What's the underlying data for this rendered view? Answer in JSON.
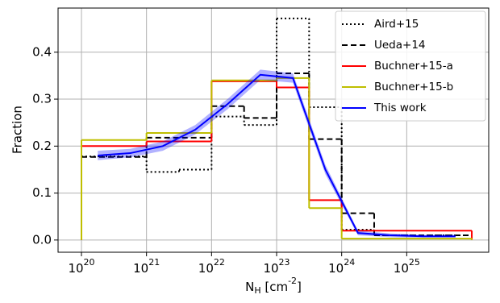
{
  "chart_data": {
    "type": "step",
    "x_label": "N_H [cm^-2]",
    "y_label": "Fraction",
    "xscale": "log",
    "grid": true,
    "legend": "upper right",
    "xlim": [
      4.37e+19,
      1.82e+26
    ],
    "ylim": [
      -0.026,
      0.494
    ],
    "xticks": [
      {
        "value": 1e+20,
        "label": "10^20"
      },
      {
        "value": 1e+21,
        "label": "10^21"
      },
      {
        "value": 1e+22,
        "label": "10^22"
      },
      {
        "value": 1e+23,
        "label": "10^23"
      },
      {
        "value": 1e+24,
        "label": "10^24"
      },
      {
        "value": 1e+25,
        "label": "10^25"
      }
    ],
    "yticks": [
      {
        "value": 0,
        "label": "0.0"
      },
      0.1,
      0.2,
      0.3,
      0.4
    ],
    "series": [
      {
        "name": "Aird+15",
        "color": "#000000",
        "dash": "dotted",
        "bins": [
          1e+20,
          1e+21,
          3.16e+21,
          1e+22,
          3.16e+22,
          1e+23,
          3.16e+23,
          1e+24,
          3.16e+24,
          1e+26
        ],
        "values": [
          0.178,
          0.145,
          0.15,
          0.263,
          0.245,
          0.472,
          0.283,
          0.022,
          0.01
        ]
      },
      {
        "name": "Ueda+14",
        "color": "#000000",
        "dash": "dashed",
        "bins": [
          1e+20,
          1e+21,
          1e+22,
          3.16e+22,
          1e+23,
          3.16e+23,
          1e+24,
          3.16e+24,
          1e+26
        ],
        "values": [
          0.177,
          0.218,
          0.285,
          0.26,
          0.355,
          0.215,
          0.057,
          0.01
        ]
      },
      {
        "name": "Buchner+15-a",
        "color": "#ff0000",
        "dash": "solid",
        "drop_to_zero": true,
        "bins": [
          1e+20,
          1e+21,
          1e+22,
          1e+23,
          3.16e+23,
          1e+24,
          1e+26
        ],
        "values": [
          0.2,
          0.21,
          0.338,
          0.325,
          0.085,
          0.02
        ]
      },
      {
        "name": "Buchner+15-b",
        "color": "#bfbf00",
        "dash": "solid",
        "drop_to_zero": true,
        "bins": [
          1e+20,
          1e+21,
          1e+22,
          1e+23,
          3.16e+23,
          1e+24,
          1e+26
        ],
        "values": [
          0.213,
          0.228,
          0.34,
          0.345,
          0.068,
          0.003
        ]
      },
      {
        "name": "This work",
        "color": "#0000ff",
        "dash": "solid",
        "kind": "line",
        "x": [
          1.78e+20,
          5.62e+20,
          1.78e+21,
          5.62e+21,
          1.78e+22,
          5.62e+22,
          1.78e+23,
          5.62e+23,
          1.78e+24,
          5.62e+24,
          1.78e+25,
          5.62e+25
        ],
        "values": [
          0.18,
          0.185,
          0.2,
          0.235,
          0.29,
          0.352,
          0.345,
          0.15,
          0.015,
          0.01,
          0.008,
          0.008
        ],
        "lower": [
          0.17,
          0.176,
          0.19,
          0.225,
          0.279,
          0.341,
          0.335,
          0.14,
          0.01,
          0.006,
          0.005,
          0.005
        ],
        "upper": [
          0.19,
          0.194,
          0.21,
          0.245,
          0.301,
          0.363,
          0.355,
          0.16,
          0.02,
          0.014,
          0.011,
          0.011
        ]
      }
    ]
  }
}
